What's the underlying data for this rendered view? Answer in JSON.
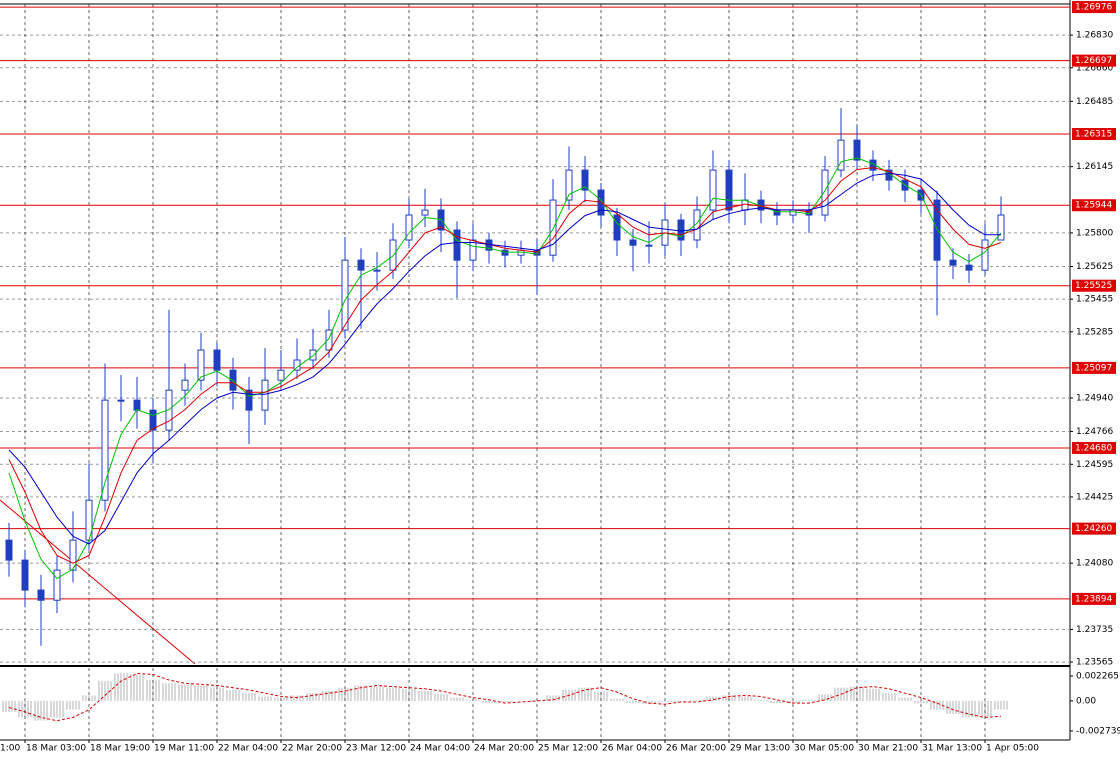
{
  "chart_data": {
    "type": "candlestick",
    "color": "#1f3fbf",
    "categories": [
      "1:00",
      null,
      null,
      null,
      "18 Mar 03:00",
      null,
      null,
      null,
      "18 Mar 19:00",
      null,
      null,
      null,
      "19 Mar 11:00",
      null,
      null,
      null,
      "22 Mar 04:00",
      null,
      null,
      null,
      "22 Mar 20:00",
      null,
      null,
      null,
      "23 Mar 12:00",
      null,
      null,
      null,
      "24 Mar 04:00",
      null,
      null,
      null,
      "24 Mar 20:00",
      null,
      null,
      null,
      "25 Mar 12:00",
      null,
      null,
      null,
      "26 Mar 04:00",
      null,
      null,
      null,
      "26 Mar 20:00",
      null,
      null,
      null,
      "29 Mar 13:00",
      null,
      null,
      null,
      "30 Mar 05:00",
      null,
      null,
      null,
      "30 Mar 21:00",
      null,
      null,
      null,
      "31 Mar 13:00",
      null,
      null,
      null,
      "1 Apr 05:00",
      null
    ],
    "ohlc": [
      null,
      null,
      null,
      [
        1.242,
        1.2429,
        1.2401,
        1.24096
      ],
      [
        1.24096,
        1.2415,
        1.2385,
        1.2394
      ],
      [
        1.2394,
        1.2402,
        1.2365,
        1.23887
      ],
      [
        1.23887,
        1.2412,
        1.2382,
        1.24044
      ],
      [
        1.24044,
        1.2435,
        1.2398,
        1.242
      ],
      [
        1.242,
        1.246,
        1.2415,
        1.24408
      ],
      [
        1.24408,
        1.2512,
        1.2435,
        1.24929
      ],
      [
        1.24929,
        1.2506,
        1.2482,
        1.24929
      ],
      [
        1.24929,
        1.2505,
        1.2478,
        1.24877
      ],
      [
        1.24877,
        1.2494,
        1.246,
        1.24773
      ],
      [
        1.24773,
        1.254,
        1.2472,
        1.24981
      ],
      [
        1.24981,
        1.2512,
        1.249,
        1.25033
      ],
      [
        1.25033,
        1.2528,
        1.2498,
        1.2519
      ],
      [
        1.2519,
        1.2523,
        1.25,
        1.25085
      ],
      [
        1.25085,
        1.2515,
        1.2488,
        1.24981
      ],
      [
        1.24981,
        1.2505,
        1.247,
        1.24877
      ],
      [
        1.24877,
        1.252,
        1.248,
        1.25033
      ],
      [
        1.25033,
        1.2519,
        1.2499,
        1.25085
      ],
      [
        1.25085,
        1.2525,
        1.2504,
        1.25138
      ],
      [
        1.25138,
        1.253,
        1.2509,
        1.2519
      ],
      [
        1.2519,
        1.254,
        1.2515,
        1.25294
      ],
      [
        1.25294,
        1.2578,
        1.2525,
        1.25658
      ],
      [
        1.25658,
        1.2572,
        1.253,
        1.25606
      ],
      [
        1.25606,
        1.257,
        1.255,
        1.25606
      ],
      [
        1.25606,
        1.2585,
        1.2556,
        1.25763
      ],
      [
        1.25763,
        1.2598,
        1.2572,
        1.25893
      ],
      [
        1.25893,
        1.2603,
        1.2583,
        1.25919
      ],
      [
        1.25919,
        1.2598,
        1.257,
        1.25815
      ],
      [
        1.25815,
        1.2586,
        1.2546,
        1.25658
      ],
      [
        1.25658,
        1.2585,
        1.256,
        1.25763
      ],
      [
        1.25763,
        1.258,
        1.2564,
        1.2571
      ],
      [
        1.2571,
        1.2576,
        1.2562,
        1.25684
      ],
      [
        1.25684,
        1.2576,
        1.2564,
        1.2571
      ],
      [
        1.2571,
        1.2577,
        1.2548,
        1.25684
      ],
      [
        1.25684,
        1.2608,
        1.2565,
        1.25971
      ],
      [
        1.25971,
        1.2625,
        1.2592,
        1.26127
      ],
      [
        1.26127,
        1.262,
        1.2596,
        1.26023
      ],
      [
        1.26023,
        1.2606,
        1.2583,
        1.25893
      ],
      [
        1.25893,
        1.2593,
        1.2568,
        1.25763
      ],
      [
        1.25763,
        1.2582,
        1.256,
        1.25736
      ],
      [
        1.25736,
        1.2586,
        1.2564,
        1.25736
      ],
      [
        1.25736,
        1.2595,
        1.2568,
        1.25867
      ],
      [
        1.25867,
        1.259,
        1.2568,
        1.25763
      ],
      [
        1.25763,
        1.2599,
        1.2572,
        1.25919
      ],
      [
        1.25919,
        1.2623,
        1.2587,
        1.26127
      ],
      [
        1.26127,
        1.2618,
        1.2585,
        1.25919
      ],
      [
        1.25919,
        1.2611,
        1.2584,
        1.25971
      ],
      [
        1.25971,
        1.2602,
        1.2585,
        1.25919
      ],
      [
        1.25919,
        1.2596,
        1.2584,
        1.25893
      ],
      [
        1.25893,
        1.2597,
        1.2585,
        1.25919
      ],
      [
        1.25919,
        1.2596,
        1.258,
        1.25893
      ],
      [
        1.25893,
        1.262,
        1.2586,
        1.26127
      ],
      [
        1.26127,
        1.2645,
        1.2609,
        1.26283
      ],
      [
        1.26283,
        1.2636,
        1.2613,
        1.26179
      ],
      [
        1.26179,
        1.2623,
        1.2607,
        1.26127
      ],
      [
        1.26127,
        1.2618,
        1.2602,
        1.26075
      ],
      [
        1.26075,
        1.2613,
        1.2596,
        1.26023
      ],
      [
        1.26023,
        1.2608,
        1.259,
        1.25971
      ],
      [
        1.25971,
        1.2602,
        1.2537,
        1.25658
      ],
      [
        1.25658,
        1.2572,
        1.2556,
        1.25632
      ],
      [
        1.25632,
        1.2569,
        1.2554,
        1.25606
      ],
      [
        1.25606,
        1.2585,
        1.2558,
        1.25763
      ],
      [
        1.25763,
        1.2599,
        1.258,
        1.25893
      ]
    ],
    "series": [
      {
        "color": "#00c000",
        "values": [
          null,
          null,
          null,
          1.2455,
          1.243,
          1.241,
          1.24,
          1.2405,
          1.242,
          1.245,
          1.2475,
          1.2488,
          1.2485,
          1.2488,
          1.2495,
          1.2505,
          1.2508,
          1.2503,
          1.2495,
          1.2497,
          1.2502,
          1.251,
          1.2516,
          1.2525,
          1.2545,
          1.2558,
          1.2562,
          1.2568,
          1.258,
          1.2588,
          1.2587,
          1.2576,
          1.2573,
          1.2572,
          1.257,
          1.257,
          1.2569,
          1.2582,
          1.26,
          1.2604,
          1.2597,
          1.2585,
          1.2578,
          1.2575,
          1.258,
          1.2578,
          1.2585,
          1.2598,
          1.2597,
          1.2597,
          1.2594,
          1.2591,
          1.2591,
          1.259,
          1.2602,
          1.2617,
          1.2619,
          1.2616,
          1.2611,
          1.2605,
          1.26,
          1.2582,
          1.257,
          1.2565,
          1.257,
          1.258
        ]
      },
      {
        "color": "#e00000",
        "values": [
          null,
          null,
          null,
          1.2462,
          1.2445,
          1.2425,
          1.2412,
          1.2408,
          1.2412,
          1.2432,
          1.2455,
          1.2472,
          1.2478,
          1.2482,
          1.2488,
          1.2496,
          1.2502,
          1.2502,
          1.2497,
          1.2497,
          1.25,
          1.2505,
          1.251,
          1.2518,
          1.2532,
          1.2545,
          1.2553,
          1.256,
          1.257,
          1.258,
          1.2583,
          1.2578,
          1.2576,
          1.2574,
          1.2572,
          1.2571,
          1.257,
          1.2577,
          1.259,
          1.2597,
          1.2596,
          1.259,
          1.2583,
          1.2579,
          1.258,
          1.2579,
          1.2582,
          1.2591,
          1.2593,
          1.2595,
          1.2594,
          1.2592,
          1.2592,
          1.2591,
          1.2597,
          1.2607,
          1.2613,
          1.2614,
          1.2612,
          1.2608,
          1.2604,
          1.2592,
          1.2582,
          1.2574,
          1.2572,
          1.2575
        ]
      },
      {
        "color": "#0000c8",
        "values": [
          null,
          null,
          null,
          1.2467,
          1.2458,
          1.2445,
          1.2432,
          1.2422,
          1.2418,
          1.2425,
          1.244,
          1.2455,
          1.2465,
          1.2472,
          1.248,
          1.2488,
          1.2494,
          1.2497,
          1.2496,
          1.2496,
          1.2498,
          1.2501,
          1.2505,
          1.2512,
          1.2522,
          1.2533,
          1.2543,
          1.2551,
          1.256,
          1.2568,
          1.2574,
          1.2575,
          1.2575,
          1.2574,
          1.2573,
          1.2572,
          1.2571,
          1.2574,
          1.2582,
          1.2589,
          1.2592,
          1.2591,
          1.2587,
          1.2583,
          1.2582,
          1.2581,
          1.2582,
          1.2587,
          1.259,
          1.2592,
          1.2593,
          1.2592,
          1.2592,
          1.2592,
          1.2594,
          1.26,
          1.2606,
          1.261,
          1.2611,
          1.261,
          1.2608,
          1.2601,
          1.2592,
          1.2584,
          1.2579,
          1.2579
        ]
      }
    ],
    "ylim": [
      1.23555,
      1.26992
    ],
    "yticks": [
      {
        "value": 1.2683,
        "label": "1.26830"
      },
      {
        "value": 1.2666,
        "label": "1.26660"
      },
      1.26485,
      1.26145,
      {
        "value": 1.258,
        "label": "1.25800"
      },
      1.25625,
      1.25455,
      1.25285,
      {
        "value": 1.2494,
        "label": "1.24940"
      },
      1.24766,
      1.24595,
      1.24425,
      {
        "value": 1.2408,
        "label": "1.24080"
      },
      1.23735,
      1.23565
    ],
    "grid": true,
    "level_color": "#e00000",
    "levels": [
      1.26976,
      1.26697,
      1.26315,
      1.25944,
      1.25525,
      1.25097,
      {
        "value": 1.2468,
        "label": "1.24680"
      },
      {
        "value": 1.2426,
        "label": "1.24260"
      },
      1.23894
    ],
    "indicator": {
      "ylim": [
        -0.00356,
        0.00299
      ],
      "yticks": [
        0.002265,
        {
          "value": 0,
          "label": "0.00"
        },
        -0.002739
      ],
      "histogram": {
        "color": "#b0b0b0",
        "values": [
          null,
          null,
          null,
          -0.001,
          -0.0015,
          -0.0018,
          -0.0015,
          -0.0008,
          0.0005,
          0.0018,
          0.0025,
          0.0024,
          0.0019,
          0.0016,
          0.0015,
          0.0014,
          0.0012,
          0.001,
          0.0007,
          0.0004,
          0.0003,
          0.0005,
          0.0007,
          0.0009,
          0.0012,
          0.0014,
          0.0013,
          0.0012,
          0.0011,
          0.0009,
          0.0006,
          0.0003,
          0.0001,
          -0.0002,
          -0.0001,
          0,
          0.0001,
          0.0005,
          0.001,
          0.0012,
          0.0008,
          0.0002,
          -0.0002,
          -0.0003,
          -0.0001,
          -0.0001,
          0.0001,
          0.0004,
          0.0005,
          0.0004,
          0.0001,
          -0.0002,
          -0.0002,
          0.0001,
          0.0006,
          0.0012,
          0.0013,
          0.0011,
          0.0007,
          0.0003,
          -0.0002,
          -0.0008,
          -0.0012,
          -0.0015,
          -0.0014,
          -0.0008
        ]
      },
      "signal": {
        "color": "#e00000",
        "values": [
          null,
          null,
          null,
          -0.0006,
          -0.001,
          -0.0015,
          -0.0018,
          -0.0015,
          -0.0008,
          0.0005,
          0.0018,
          0.0025,
          0.0024,
          0.0019,
          0.0016,
          0.0015,
          0.0014,
          0.0012,
          0.001,
          0.0007,
          0.0004,
          0.0003,
          0.0005,
          0.0007,
          0.0009,
          0.0012,
          0.0014,
          0.0013,
          0.0012,
          0.0011,
          0.0009,
          0.0006,
          0.0003,
          0.0001,
          -0.0002,
          -0.0001,
          0,
          0.0001,
          0.0005,
          0.001,
          0.0012,
          0.0008,
          0.0002,
          -0.0002,
          -0.0003,
          -0.0001,
          -0.0001,
          0.0001,
          0.0004,
          0.0005,
          0.0004,
          0.0001,
          -0.0002,
          -0.0002,
          0.0001,
          0.0006,
          0.0012,
          0.0013,
          0.0011,
          0.0007,
          0.0003,
          -0.0002,
          -0.0008,
          -0.0012,
          -0.0015,
          -0.0014
        ]
      }
    }
  }
}
